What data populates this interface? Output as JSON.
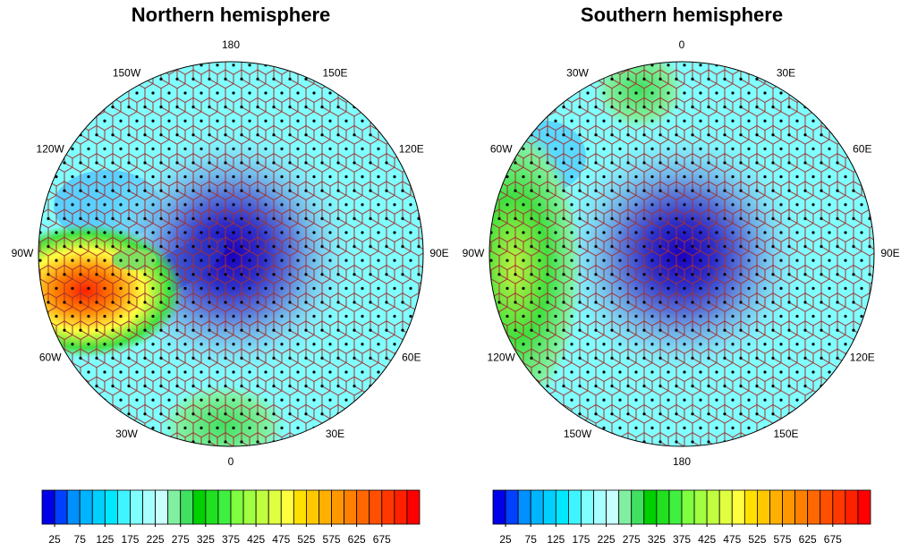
{
  "panels": [
    {
      "title": "Northern hemisphere",
      "lon_labels": [
        "180",
        "150E",
        "120E",
        "90E",
        "60E",
        "30E",
        "0",
        "30W",
        "60W",
        "90W",
        "120W",
        "150W"
      ],
      "colorbar_labels": [
        25,
        75,
        125,
        175,
        225,
        275,
        325,
        375,
        425,
        475,
        525,
        575,
        625,
        675
      ]
    },
    {
      "title": "Southern hemisphere",
      "lon_labels": [
        "0",
        "30E",
        "60E",
        "90E",
        "120E",
        "150E",
        "180",
        "150W",
        "120W",
        "90W",
        "60W",
        "30W"
      ],
      "colorbar_labels": [
        25,
        75,
        125,
        175,
        225,
        275,
        325,
        375,
        425,
        475,
        525,
        575,
        625,
        675
      ]
    }
  ],
  "colorbar_colors": [
    "#0000e8",
    "#0040ff",
    "#0090ff",
    "#00b4ff",
    "#00d0ff",
    "#00e8ff",
    "#40f4ff",
    "#80ffff",
    "#a8ffff",
    "#c8ffff",
    "#80f0a0",
    "#40e060",
    "#00d000",
    "#20e020",
    "#40f040",
    "#80ff40",
    "#a0ff40",
    "#c0ff40",
    "#e0ff40",
    "#ffff40",
    "#ffe000",
    "#ffc800",
    "#ffb000",
    "#ff9800",
    "#ff8000",
    "#ff6800",
    "#ff5000",
    "#ff3800",
    "#ff2000",
    "#ff0000"
  ]
}
